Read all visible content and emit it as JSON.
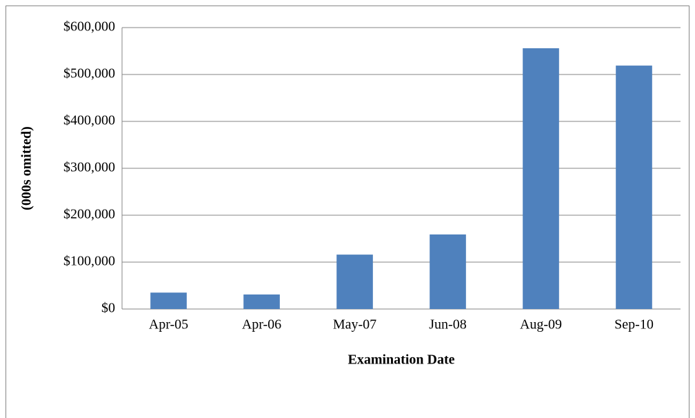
{
  "chart_data": {
    "type": "bar",
    "x_label": "Examination Date",
    "y_label": "(000s omitted)",
    "categories": [
      "Apr-05",
      "Apr-06",
      "May-07",
      "Jun-08",
      "Aug-09",
      "Sep-10"
    ],
    "values": [
      35000,
      31000,
      116000,
      159000,
      556000,
      519000
    ],
    "color": "#4f81bd",
    "ylim": [
      0,
      600000
    ],
    "yticks": [
      {
        "value": 0,
        "label": "$0"
      },
      {
        "value": 100000,
        "label": "$100,000"
      },
      {
        "value": 200000,
        "label": "$200,000"
      },
      {
        "value": 300000,
        "label": "$300,000"
      },
      {
        "value": 400000,
        "label": "$400,000"
      },
      {
        "value": 500000,
        "label": "$500,000"
      },
      {
        "value": 600000,
        "label": "$600,000"
      }
    ],
    "grid": true
  }
}
